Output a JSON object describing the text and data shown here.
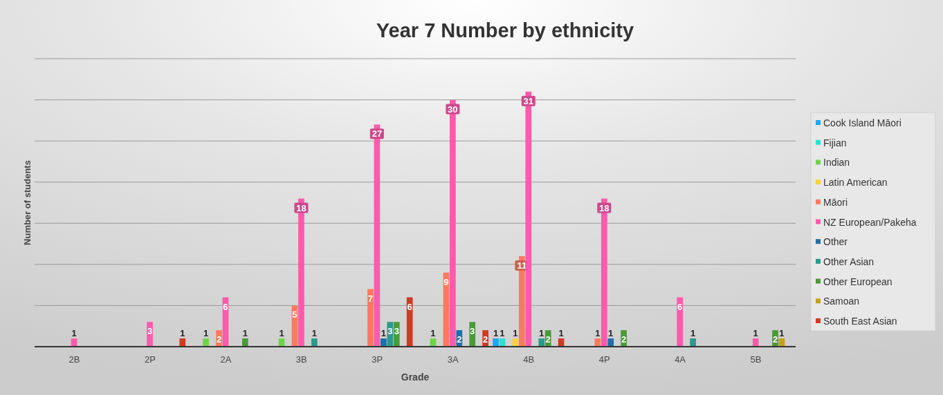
{
  "chart_data": {
    "type": "bar",
    "title": "Year 7 Number by ethnicity",
    "xlabel": "Grade",
    "ylabel": "Number of students",
    "categories": [
      "2B",
      "2P",
      "2A",
      "3B",
      "3P",
      "3A",
      "4B",
      "4P",
      "4A",
      "5B"
    ],
    "series": [
      {
        "name": "Cook Island Māori",
        "color": "#1ea7f0",
        "values": [
          null,
          null,
          null,
          null,
          null,
          null,
          1,
          null,
          null,
          null
        ]
      },
      {
        "name": "Fijian",
        "color": "#2ee0d0",
        "values": [
          null,
          null,
          null,
          null,
          null,
          null,
          1,
          null,
          null,
          null
        ]
      },
      {
        "name": "Indian",
        "color": "#6dd44a",
        "values": [
          null,
          null,
          1,
          1,
          null,
          1,
          null,
          null,
          null,
          null
        ]
      },
      {
        "name": "Latin American",
        "color": "#f8d23c",
        "values": [
          null,
          null,
          null,
          null,
          null,
          null,
          1,
          null,
          null,
          null
        ]
      },
      {
        "name": "Māori",
        "color": "#fa7a60",
        "values": [
          null,
          null,
          2,
          5,
          7,
          9,
          11,
          1,
          null,
          null
        ]
      },
      {
        "name": "NZ European/Pakeha",
        "color": "#fc5aac",
        "values": [
          1,
          3,
          6,
          18,
          27,
          30,
          31,
          18,
          6,
          1
        ]
      },
      {
        "name": "Other",
        "color": "#1f6fa8",
        "values": [
          null,
          null,
          null,
          null,
          1,
          2,
          null,
          1,
          null,
          null
        ]
      },
      {
        "name": "Other Asian",
        "color": "#2a9a8c",
        "values": [
          null,
          null,
          null,
          1,
          3,
          null,
          1,
          null,
          1,
          null
        ]
      },
      {
        "name": "Other European",
        "color": "#4a9a38",
        "values": [
          null,
          null,
          1,
          null,
          3,
          3,
          2,
          2,
          null,
          2
        ]
      },
      {
        "name": "Samoan",
        "color": "#c4a020",
        "values": [
          null,
          null,
          null,
          null,
          null,
          null,
          null,
          null,
          null,
          1
        ]
      },
      {
        "name": "South East Asian",
        "color": "#d03a22",
        "values": [
          null,
          1,
          null,
          null,
          6,
          2,
          1,
          null,
          null,
          null
        ]
      }
    ],
    "ylim": [
      0,
      35
    ],
    "yticks": [
      {
        "value": 0,
        "label": null
      },
      {
        "value": 5,
        "label": null
      },
      {
        "value": 10,
        "label": null
      },
      {
        "value": 15,
        "label": null
      },
      {
        "value": 20,
        "label": null
      },
      {
        "value": 25,
        "label": null
      },
      {
        "value": 30,
        "label": null
      },
      {
        "value": 35,
        "label": null
      }
    ],
    "tick_labels": "x",
    "grid": "y",
    "legend": "right",
    "data_labels": true
  }
}
